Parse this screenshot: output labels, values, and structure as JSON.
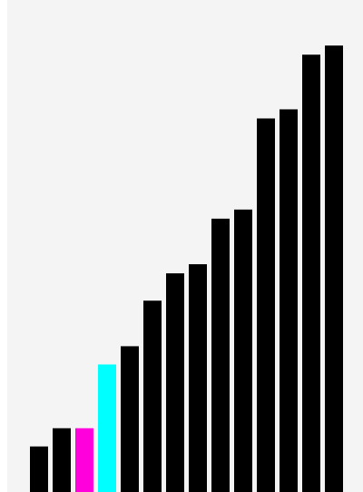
{
  "chart_data": {
    "type": "bar",
    "values": [
      5,
      7,
      7,
      14,
      16,
      21,
      24,
      25,
      30,
      31,
      41,
      42,
      48,
      49
    ],
    "colors": [
      "#000000",
      "#000000",
      "#ff00dd",
      "#00ffff",
      "#000000",
      "#000000",
      "#000000",
      "#000000",
      "#000000",
      "#000000",
      "#000000",
      "#000000",
      "#000000",
      "#000000"
    ],
    "ylim": [
      0,
      54
    ]
  }
}
